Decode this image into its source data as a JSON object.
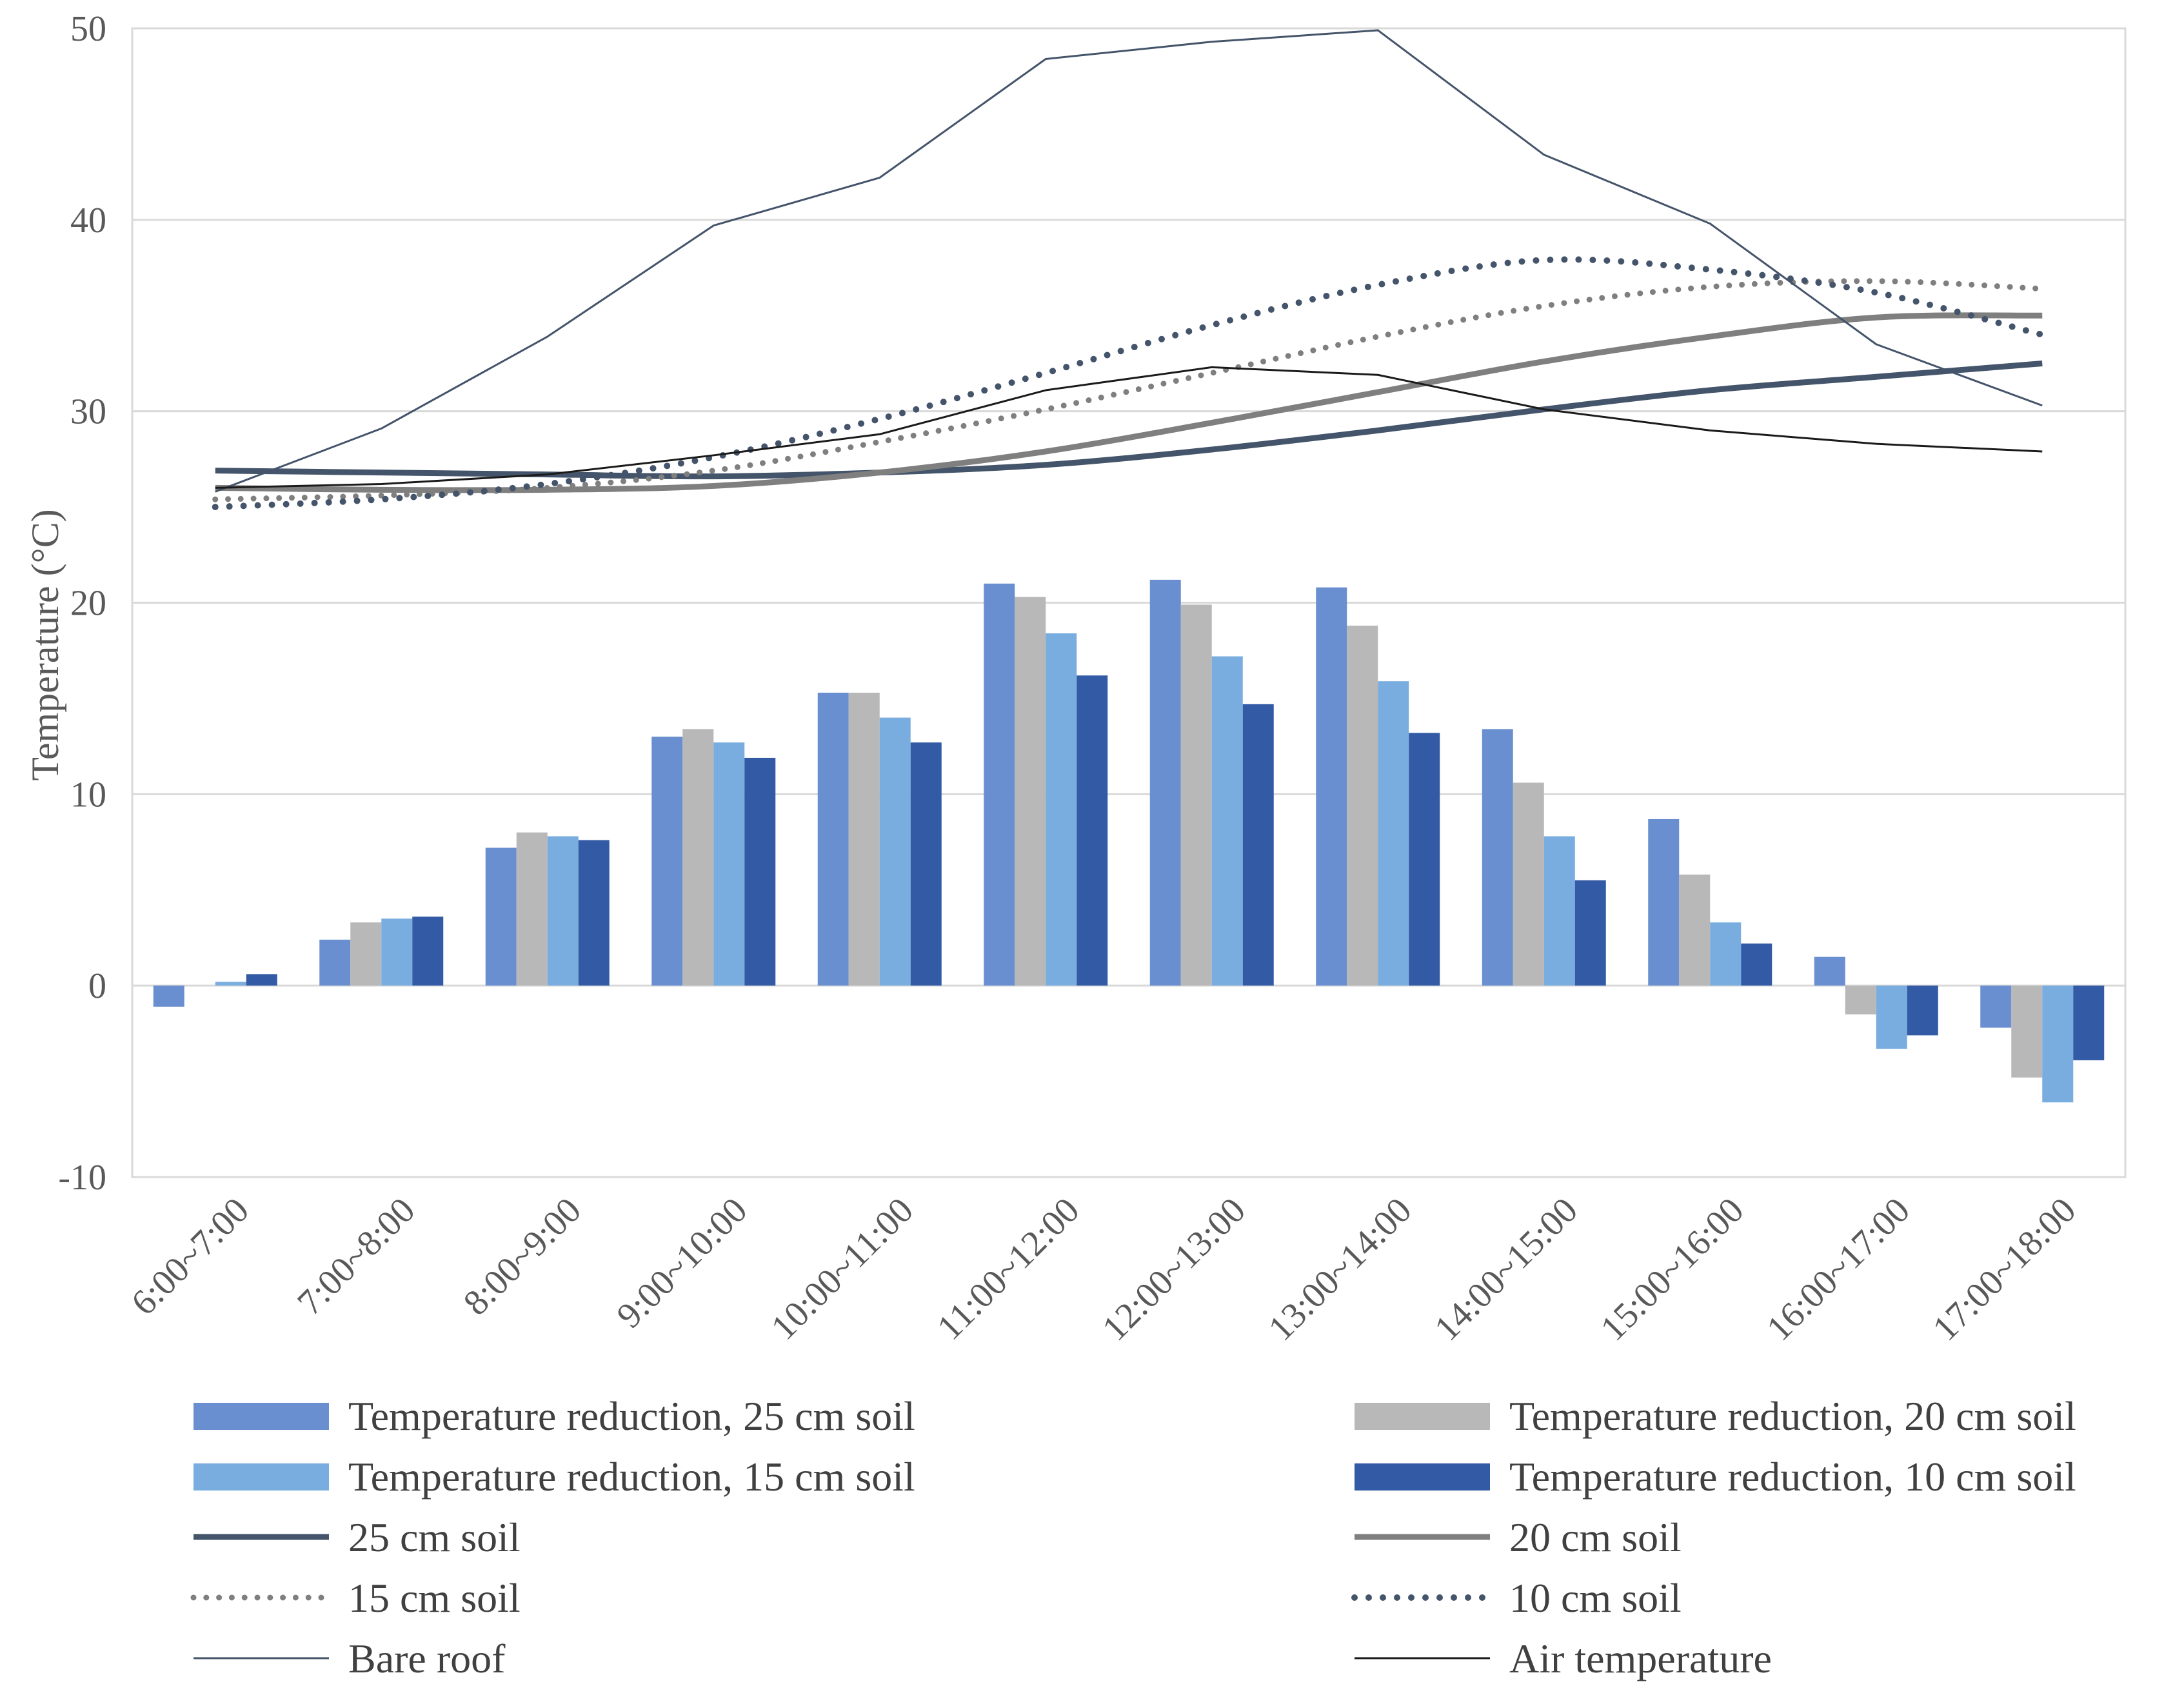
{
  "chart_data": {
    "type": "bar+line",
    "title": "",
    "xlabel": "",
    "ylabel": "Temperature (°C)",
    "ylim": [
      -10,
      50
    ],
    "yticks": [
      -10,
      0,
      10,
      20,
      30,
      40,
      50
    ],
    "ytick_labels": [
      "-10",
      "0",
      "10",
      "20",
      "30",
      "40",
      "50"
    ],
    "grid": true,
    "legend_position": "bottom",
    "categories": [
      "6:00~7:00",
      "7:00~8:00",
      "8:00~9:00",
      "9:00~10:00",
      "10:00~11:00",
      "11:00~12:00",
      "12:00~13:00",
      "13:00~14:00",
      "14:00~15:00",
      "15:00~16:00",
      "16:00~17:00",
      "17:00~18:00"
    ],
    "bar_series": [
      {
        "name": "Temperature reduction, 25 cm soil",
        "color": "#6a8fd0",
        "values": [
          -1.1,
          2.4,
          7.2,
          13.0,
          15.3,
          21.0,
          21.2,
          20.8,
          13.4,
          8.7,
          1.5,
          -2.2
        ]
      },
      {
        "name": "Temperature reduction, 20 cm soil",
        "color": "#b8b8b8",
        "values": [
          0.0,
          3.3,
          8.0,
          13.4,
          15.3,
          20.3,
          19.9,
          18.8,
          10.6,
          5.8,
          -1.5,
          -4.8
        ]
      },
      {
        "name": "Temperature reduction, 15 cm soil",
        "color": "#7aaddf",
        "values": [
          0.2,
          3.5,
          7.8,
          12.7,
          14.0,
          18.4,
          17.2,
          15.9,
          7.8,
          3.3,
          -3.3,
          -6.1
        ]
      },
      {
        "name": "Temperature reduction, 10 cm soil",
        "color": "#335aa4",
        "values": [
          0.6,
          3.6,
          7.6,
          11.9,
          12.7,
          16.2,
          14.7,
          13.2,
          5.5,
          2.2,
          -2.6,
          -3.9
        ]
      }
    ],
    "line_series": [
      {
        "name": "25 cm soil",
        "color": "#44546a",
        "style": "solid",
        "width": 9,
        "values": [
          26.9,
          26.8,
          26.7,
          26.6,
          26.8,
          27.2,
          28.0,
          29.0,
          30.1,
          31.1,
          31.8,
          32.5
        ]
      },
      {
        "name": "20 cm soil",
        "color": "#7f7f7f",
        "style": "solid",
        "width": 9,
        "values": [
          26.0,
          25.9,
          25.9,
          26.1,
          26.8,
          27.9,
          29.4,
          31.0,
          32.6,
          33.9,
          34.9,
          35.0
        ]
      },
      {
        "name": "15 cm soil",
        "color": "#7f7f7f",
        "style": "dotted",
        "width": 9,
        "values": [
          25.4,
          25.6,
          26.0,
          26.9,
          28.4,
          30.1,
          32.0,
          33.9,
          35.5,
          36.5,
          36.8,
          36.4
        ]
      },
      {
        "name": "10 cm soil",
        "color": "#44546a",
        "style": "dotted",
        "width": 10,
        "values": [
          25.0,
          25.4,
          26.2,
          27.6,
          29.6,
          32.0,
          34.5,
          36.6,
          37.9,
          37.4,
          36.2,
          34.0
        ]
      },
      {
        "name": "Bare roof",
        "color": "#44546a",
        "style": "solid",
        "width": 3,
        "values": [
          25.8,
          29.1,
          33.9,
          39.7,
          42.2,
          48.4,
          49.3,
          49.9,
          43.4,
          39.8,
          33.5,
          30.3
        ]
      },
      {
        "name": "Air temperature",
        "color": "#1a1a1a",
        "style": "solid",
        "width": 3,
        "values": [
          26.0,
          26.2,
          26.7,
          27.7,
          28.8,
          31.1,
          32.3,
          31.9,
          30.1,
          29.0,
          28.3,
          27.9
        ]
      }
    ]
  }
}
